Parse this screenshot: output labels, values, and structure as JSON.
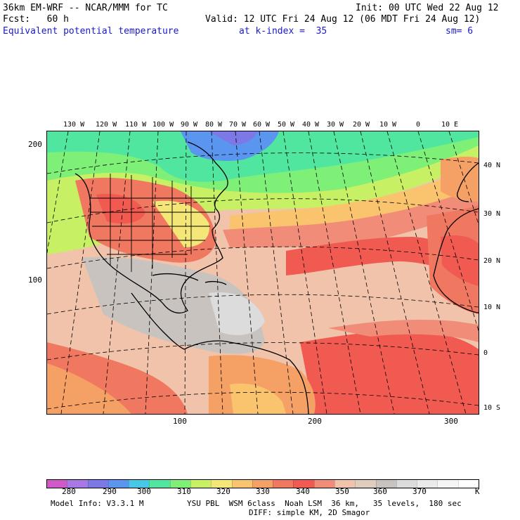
{
  "header": {
    "model_line": "36km EM-WRF -- NCAR/MMM for TC",
    "init_line": "Init: 00 UTC Wed 22 Aug 12",
    "fcst_line": "Fcst:   60 h",
    "valid_line": "Valid: 12 UTC Fri 24 Aug 12 (06 MDT Fri 24 Aug 12)",
    "field_name": "Equivalent potential temperature",
    "level": "at k-index =  35",
    "smoothing": "sm= 6"
  },
  "map": {
    "top_lon_labels": [
      "130 W",
      "120 W",
      "110 W",
      "100 W",
      "90 W",
      "80 W",
      "70 W",
      "60 W",
      "50 W",
      "40 W",
      "30 W",
      "20 W",
      "10 W",
      "0",
      "10 E"
    ],
    "right_lat_labels": [
      "40 N",
      "30 N",
      "20 N",
      "10 N",
      "0",
      "10 S"
    ],
    "left_grid_labels": [
      "200",
      "100"
    ],
    "bottom_grid_labels": [
      "100",
      "200",
      "300"
    ]
  },
  "colorbar": {
    "colors": [
      "#d25ac8",
      "#a878e6",
      "#7c78e8",
      "#5a96f0",
      "#48c8e6",
      "#50e6a0",
      "#7ef078",
      "#c8f064",
      "#f5e678",
      "#fac36e",
      "#f5a064",
      "#f07860",
      "#f05a50",
      "#f08c78",
      "#f0c3aa",
      "#e1cdbe",
      "#c8c3be",
      "#dcdcdc",
      "#ebebeb",
      "#f5f5f5",
      "#ffffff"
    ],
    "labels": [
      "280",
      "290",
      "300",
      "310",
      "320",
      "330",
      "340",
      "350",
      "360",
      "370"
    ],
    "unit": "K"
  },
  "footer": {
    "model_info": "Model Info: V3.3.1 M",
    "physics": "YSU PBL  WSM 6class  Noah LSM  36 km,   35 levels,  180 sec",
    "diffusion": "DIFF: simple KM, 2D Smagor"
  }
}
